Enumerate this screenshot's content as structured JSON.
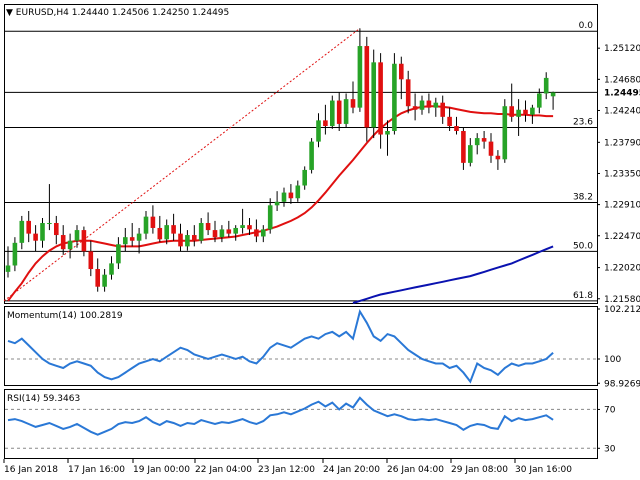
{
  "header": {
    "symbol": "EURUSD,H4",
    "ohlc": "1.24440 1.24506 1.24250 1.24495"
  },
  "colors": {
    "bull": "#27a327",
    "bear": "#e01010",
    "wick": "#000000",
    "ma_fast": "#e01010",
    "ma_slow": "#0a12b0",
    "oscillator": "#2a78d6",
    "fib_line": "#000000",
    "trend_line": "#e01010"
  },
  "chart_data": [
    {
      "type": "candlestick",
      "title": "EURUSD,H4",
      "subtitle": "1.24440 1.24506 1.24250 1.24495",
      "ylim": [
        1.2152,
        1.2573
      ],
      "y_ticks": [
        "1.25120",
        "1.24680",
        "1.24240",
        "1.23790",
        "1.23350",
        "1.22910",
        "1.22470",
        "1.22020",
        "1.21580"
      ],
      "last_price": "1.24495",
      "x_ticks": [
        "16 Jan 2018",
        "17 Jan 16:00",
        "19 Jan 00:00",
        "22 Jan 04:00",
        "23 Jan 12:00",
        "24 Jan 20:00",
        "26 Jan 04:00",
        "29 Jan 08:00",
        "30 Jan 16:00"
      ],
      "fib_levels": [
        {
          "label": "0.0",
          "price": 1.2536
        },
        {
          "label": "23.6",
          "price": 1.24
        },
        {
          "label": "38.2",
          "price": 1.2294
        },
        {
          "label": "50.0",
          "price": 1.2225
        },
        {
          "label": "61.8",
          "price": 1.2155
        }
      ],
      "candles": [
        [
          1.2196,
          1.2232,
          1.2188,
          1.2205
        ],
        [
          1.2205,
          1.2245,
          1.2197,
          1.2237
        ],
        [
          1.2237,
          1.2275,
          1.2228,
          1.2268
        ],
        [
          1.2268,
          1.2282,
          1.2238,
          1.225
        ],
        [
          1.225,
          1.2262,
          1.2225,
          1.224
        ],
        [
          1.224,
          1.2272,
          1.223,
          1.2265
        ],
        [
          1.2265,
          1.232,
          1.2255,
          1.2265
        ],
        [
          1.2265,
          1.2275,
          1.2235,
          1.2248
        ],
        [
          1.2248,
          1.2262,
          1.222,
          1.2228
        ],
        [
          1.2228,
          1.225,
          1.2215,
          1.224
        ],
        [
          1.224,
          1.2262,
          1.223,
          1.2255
        ],
        [
          1.2255,
          1.226,
          1.2218,
          1.2225
        ],
        [
          1.2225,
          1.224,
          1.219,
          1.22
        ],
        [
          1.22,
          1.2215,
          1.2168,
          1.2175
        ],
        [
          1.2175,
          1.22,
          1.2168,
          1.2192
        ],
        [
          1.2192,
          1.2218,
          1.2185,
          1.2208
        ],
        [
          1.2208,
          1.2245,
          1.22,
          1.2235
        ],
        [
          1.2235,
          1.2258,
          1.2225,
          1.2245
        ],
        [
          1.2245,
          1.2265,
          1.2232,
          1.224
        ],
        [
          1.224,
          1.2258,
          1.2222,
          1.225
        ],
        [
          1.225,
          1.2282,
          1.2242,
          1.2274
        ],
        [
          1.2274,
          1.229,
          1.225,
          1.2258
        ],
        [
          1.2258,
          1.2275,
          1.2238,
          1.2242
        ],
        [
          1.2242,
          1.227,
          1.2235,
          1.2262
        ],
        [
          1.2262,
          1.2278,
          1.224,
          1.225
        ],
        [
          1.225,
          1.2264,
          1.2225,
          1.2232
        ],
        [
          1.2232,
          1.2255,
          1.2226,
          1.2248
        ],
        [
          1.2248,
          1.2262,
          1.2232,
          1.224
        ],
        [
          1.224,
          1.2272,
          1.2236,
          1.2265
        ],
        [
          1.2265,
          1.228,
          1.2248,
          1.2255
        ],
        [
          1.2255,
          1.2268,
          1.2238,
          1.2245
        ],
        [
          1.2245,
          1.2262,
          1.2238,
          1.2256
        ],
        [
          1.2256,
          1.2268,
          1.2245,
          1.225
        ],
        [
          1.225,
          1.2262,
          1.224,
          1.2258
        ],
        [
          1.2258,
          1.2285,
          1.225,
          1.2262
        ],
        [
          1.2262,
          1.2272,
          1.2248,
          1.2256
        ],
        [
          1.2256,
          1.227,
          1.2238,
          1.2246
        ],
        [
          1.2246,
          1.2262,
          1.2238,
          1.2256
        ],
        [
          1.2256,
          1.23,
          1.225,
          1.229
        ],
        [
          1.229,
          1.231,
          1.2282,
          1.2295
        ],
        [
          1.2295,
          1.2315,
          1.2288,
          1.2308
        ],
        [
          1.2308,
          1.232,
          1.2292,
          1.23
        ],
        [
          1.23,
          1.2325,
          1.2295,
          1.2318
        ],
        [
          1.2318,
          1.2345,
          1.2312,
          1.234
        ],
        [
          1.234,
          1.2385,
          1.2335,
          1.238
        ],
        [
          1.238,
          1.242,
          1.2372,
          1.241
        ],
        [
          1.241,
          1.2432,
          1.239,
          1.2402
        ],
        [
          1.2402,
          1.2445,
          1.2398,
          1.2438
        ],
        [
          1.2438,
          1.245,
          1.2395,
          1.2405
        ],
        [
          1.2405,
          1.2448,
          1.24,
          1.244
        ],
        [
          1.244,
          1.2465,
          1.242,
          1.2428
        ],
        [
          1.2428,
          1.254,
          1.2422,
          1.2515
        ],
        [
          1.2515,
          1.2528,
          1.238,
          1.24
        ],
        [
          1.24,
          1.251,
          1.2385,
          1.2492
        ],
        [
          1.2492,
          1.2505,
          1.237,
          1.239
        ],
        [
          1.239,
          1.241,
          1.236,
          1.2395
        ],
        [
          1.2395,
          1.2505,
          1.239,
          1.249
        ],
        [
          1.249,
          1.25,
          1.244,
          1.2468
        ],
        [
          1.2468,
          1.248,
          1.242,
          1.243
        ],
        [
          1.243,
          1.2448,
          1.241,
          1.2425
        ],
        [
          1.2425,
          1.2445,
          1.2418,
          1.2438
        ],
        [
          1.2438,
          1.2448,
          1.242,
          1.2428
        ],
        [
          1.2428,
          1.2442,
          1.2415,
          1.2435
        ],
        [
          1.2435,
          1.2445,
          1.2405,
          1.2415
        ],
        [
          1.2415,
          1.2428,
          1.2395,
          1.2402
        ],
        [
          1.2402,
          1.2415,
          1.239,
          1.2395
        ],
        [
          1.2395,
          1.24,
          1.234,
          1.235
        ],
        [
          1.235,
          1.2385,
          1.2345,
          1.2375
        ],
        [
          1.2375,
          1.2392,
          1.2362,
          1.2385
        ],
        [
          1.2385,
          1.2395,
          1.237,
          1.238
        ],
        [
          1.238,
          1.2392,
          1.235,
          1.236
        ],
        [
          1.236,
          1.2368,
          1.234,
          1.2355
        ],
        [
          1.2355,
          1.244,
          1.235,
          1.243
        ],
        [
          1.243,
          1.2462,
          1.2408,
          1.2415
        ],
        [
          1.2415,
          1.244,
          1.2388,
          1.2425
        ],
        [
          1.2425,
          1.2438,
          1.2408,
          1.2418
        ],
        [
          1.2418,
          1.2432,
          1.2405,
          1.2428
        ],
        [
          1.2428,
          1.2455,
          1.242,
          1.2448
        ],
        [
          1.2448,
          1.2478,
          1.244,
          1.247
        ],
        [
          1.2444,
          1.24506,
          1.2425,
          1.24495
        ]
      ],
      "series": [
        {
          "name": "",
          "kind": "ma",
          "x_start": 0,
          "values": [
            1.2155,
            1.2168,
            1.218,
            1.2195,
            1.2208,
            1.2218,
            1.2226,
            1.2232,
            1.2236,
            1.2238,
            1.224,
            1.224,
            1.224,
            1.2238,
            1.2236,
            1.2234,
            1.2232,
            1.2232,
            1.2232,
            1.2232,
            1.2234,
            1.2236,
            1.2238,
            1.2239,
            1.224,
            1.224,
            1.224,
            1.224,
            1.2241,
            1.2242,
            1.2243,
            1.2244,
            1.2245,
            1.2246,
            1.2248,
            1.225,
            1.2252,
            1.2254,
            1.2257,
            1.226,
            1.2264,
            1.2268,
            1.2273,
            1.2279,
            1.2287,
            1.2297,
            1.2308,
            1.232,
            1.2332,
            1.2343,
            1.2354,
            1.2366,
            1.2378,
            1.2389,
            1.2399,
            1.2407,
            1.2414,
            1.242,
            1.2424,
            1.2427,
            1.2429,
            1.243,
            1.243,
            1.2429,
            1.2428,
            1.2426,
            1.2424,
            1.2422,
            1.2421,
            1.242,
            1.242,
            1.2419,
            1.2419,
            1.2418,
            1.2418,
            1.2418,
            1.2417,
            1.2417,
            1.2416,
            1.2416
          ]
        },
        {
          "name": "",
          "kind": "ma",
          "x_start": 50,
          "values": [
            1.2152,
            1.2155,
            1.2158,
            1.2161,
            1.2164,
            1.2166,
            1.2168,
            1.217,
            1.2172,
            1.2174,
            1.2176,
            1.2178,
            1.218,
            1.2182,
            1.2184,
            1.2186,
            1.2188,
            1.219,
            1.2193,
            1.2196,
            1.2199,
            1.2202,
            1.2205,
            1.2208,
            1.2212,
            1.2216,
            1.222,
            1.2224,
            1.2228,
            1.2232
          ]
        }
      ]
    },
    {
      "type": "line",
      "title": "Momentum(14) 100.2819",
      "ylim": [
        98.85,
        102.3
      ],
      "y_ticks": [
        "102.212",
        "100",
        "98.9269"
      ],
      "reference_levels": [
        100
      ],
      "series": [
        {
          "name": "Momentum(14)",
          "values": [
            100.8,
            100.7,
            100.9,
            100.6,
            100.3,
            100.0,
            99.8,
            99.7,
            99.6,
            99.8,
            99.9,
            99.8,
            99.7,
            99.4,
            99.2,
            99.1,
            99.2,
            99.4,
            99.6,
            99.8,
            99.9,
            100.0,
            99.9,
            100.1,
            100.3,
            100.5,
            100.4,
            100.2,
            100.1,
            100.0,
            100.1,
            100.2,
            100.1,
            100.0,
            100.1,
            99.9,
            99.8,
            100.1,
            100.5,
            100.7,
            100.6,
            100.5,
            100.7,
            100.9,
            101.0,
            100.9,
            101.1,
            101.2,
            101.0,
            101.2,
            100.9,
            102.1,
            101.6,
            101.0,
            100.8,
            101.1,
            101.0,
            100.7,
            100.4,
            100.2,
            100.0,
            99.9,
            99.8,
            99.8,
            99.6,
            99.7,
            99.4,
            99.0,
            99.8,
            99.6,
            99.5,
            99.3,
            99.6,
            99.8,
            99.7,
            99.8,
            99.8,
            99.9,
            100.0,
            100.28
          ]
        }
      ]
    },
    {
      "type": "line",
      "title": "RSI(14) 59.3463",
      "ylim": [
        20,
        90
      ],
      "y_ticks": [
        "70",
        "30"
      ],
      "reference_levels": [
        70,
        30
      ],
      "series": [
        {
          "name": "RSI(14)",
          "values": [
            59,
            60,
            58,
            55,
            52,
            54,
            56,
            53,
            50,
            52,
            55,
            51,
            47,
            44,
            47,
            50,
            55,
            57,
            56,
            58,
            62,
            57,
            54,
            58,
            56,
            53,
            56,
            55,
            59,
            57,
            55,
            57,
            56,
            58,
            60,
            57,
            55,
            58,
            64,
            65,
            67,
            65,
            68,
            71,
            75,
            78,
            73,
            77,
            70,
            76,
            72,
            82,
            75,
            69,
            66,
            63,
            65,
            63,
            60,
            59,
            60,
            59,
            60,
            58,
            56,
            54,
            49,
            53,
            55,
            54,
            51,
            50,
            63,
            58,
            61,
            59,
            60,
            62,
            64,
            59.35
          ]
        }
      ]
    }
  ]
}
